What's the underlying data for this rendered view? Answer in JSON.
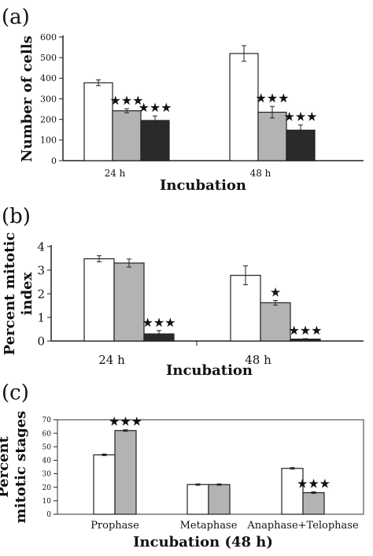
{
  "chart_data": [
    {
      "panel_label": "(a)",
      "type": "bar",
      "categories": [
        "24 h",
        "48 h"
      ],
      "series": [
        {
          "color": "#ffffff",
          "values": [
            378,
            520
          ],
          "errors": [
            14,
            38
          ]
        },
        {
          "color": "#b3b3b3",
          "values": [
            242,
            235
          ],
          "errors": [
            10,
            28
          ]
        },
        {
          "color": "#2a2a2a",
          "values": [
            195,
            148
          ],
          "errors": [
            22,
            25
          ]
        }
      ],
      "significance": [
        [
          "",
          "★★★",
          "★★★"
        ],
        [
          "",
          "★★★",
          "★★★"
        ]
      ],
      "xlabel": "Incubation",
      "ylabel": "Number of cells",
      "ylim": [
        0,
        600
      ],
      "yticks": [
        "0",
        "100",
        "200",
        "300",
        "400",
        "500",
        "600"
      ],
      "grid": false,
      "legend": "none"
    },
    {
      "panel_label": "(b)",
      "type": "bar",
      "categories": [
        "24 h",
        "48 h"
      ],
      "series": [
        {
          "color": "#ffffff",
          "values": [
            3.48,
            2.78
          ],
          "errors": [
            0.13,
            0.4
          ]
        },
        {
          "color": "#b3b3b3",
          "values": [
            3.3,
            1.62
          ],
          "errors": [
            0.17,
            0.1
          ]
        },
        {
          "color": "#2a2a2a",
          "values": [
            0.3,
            0.08
          ],
          "errors": [
            0.14,
            0.02
          ]
        }
      ],
      "significance": [
        [
          "",
          "",
          "★★★"
        ],
        [
          "",
          "★",
          "★★★"
        ]
      ],
      "xlabel": "Incubation",
      "ylabel": "Percent mitotic index",
      "ylabel_lines": [
        "Percent mitotic",
        "index"
      ],
      "ylim": [
        0,
        4
      ],
      "yticks": [
        "0",
        "1",
        "2",
        "3",
        "4"
      ],
      "grid": false,
      "legend": "none"
    },
    {
      "panel_label": "(c)",
      "type": "bar",
      "categories": [
        "Prophase",
        "Metaphase",
        "Anaphase+Telophase"
      ],
      "series": [
        {
          "color": "#ffffff",
          "values": [
            44,
            22,
            34
          ],
          "errors": [
            0.6,
            0.5,
            0.6
          ]
        },
        {
          "color": "#b3b3b3",
          "values": [
            62,
            22,
            16
          ],
          "errors": [
            0.6,
            0.5,
            0.6
          ]
        }
      ],
      "significance": [
        [
          "",
          "★★★"
        ],
        [
          "",
          ""
        ],
        [
          "",
          "★★★"
        ]
      ],
      "xlabel": "Incubation (48 h)",
      "ylabel": "Percent mitotic stages",
      "ylabel_lines": [
        "Percent",
        "mitotic stages"
      ],
      "ylim": [
        0,
        70
      ],
      "yticks": [
        "0",
        "10",
        "20",
        "30",
        "40",
        "50",
        "60",
        "70"
      ],
      "grid": false,
      "legend": "none"
    }
  ]
}
